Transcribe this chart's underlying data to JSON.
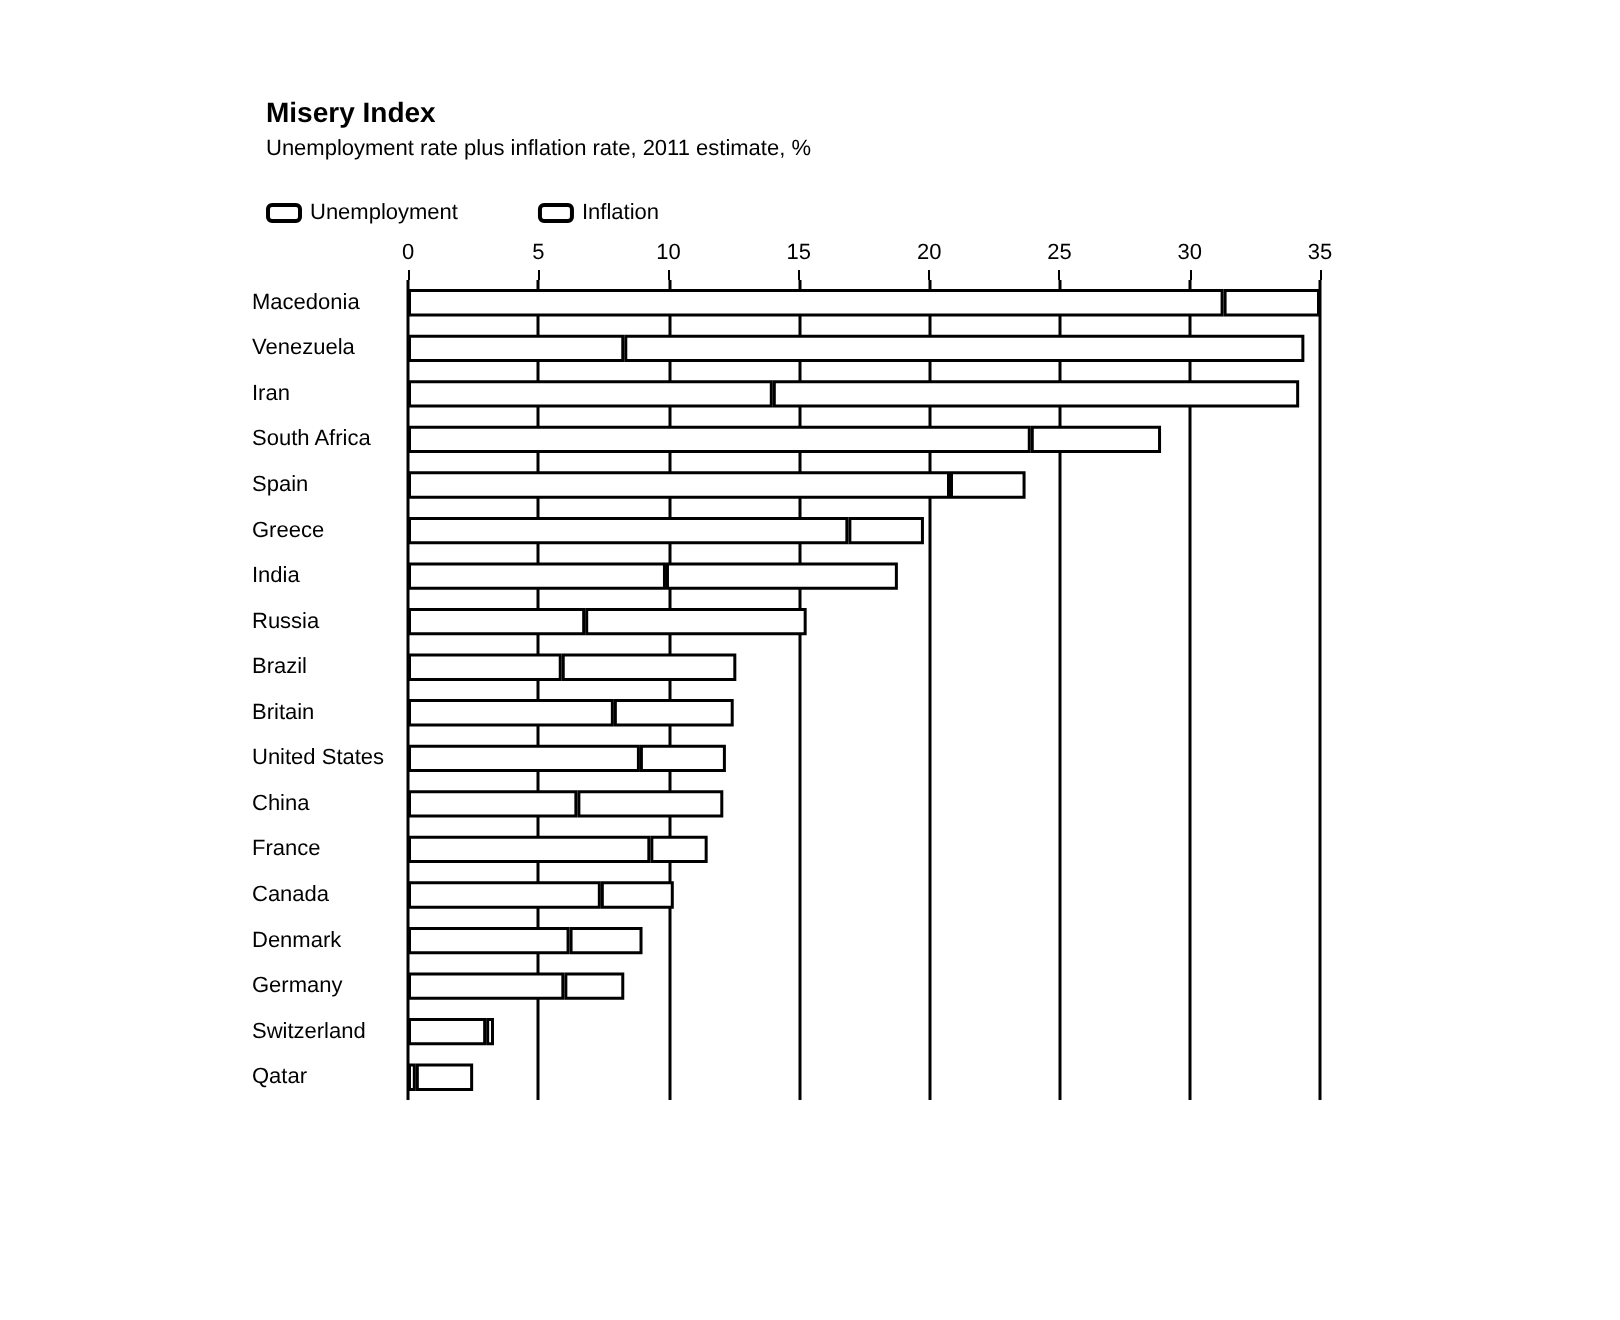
{
  "chart_data": {
    "type": "bar",
    "title": "Misery Index",
    "subtitle": "Unemployment rate plus inflation rate, 2011 estimate, %",
    "orientation": "horizontal",
    "stacked": true,
    "legend": "top left",
    "grid": "x",
    "categories": [
      "Macedonia",
      "Venezuela",
      "Iran",
      "South Africa",
      "Spain",
      "Greece",
      "India",
      "Russia",
      "Brazil",
      "Britain",
      "United States",
      "China",
      "France",
      "Canada",
      "Denmark",
      "Germany",
      "Switzerland",
      "Qatar"
    ],
    "series": [
      {
        "name": "Unemployment",
        "color": "#ffffff",
        "values": [
          31.3,
          8.3,
          14.0,
          23.9,
          20.8,
          16.9,
          9.9,
          6.8,
          5.9,
          7.9,
          8.9,
          6.5,
          9.3,
          7.4,
          6.2,
          6.0,
          3.0,
          0.3
        ]
      },
      {
        "name": "Inflation",
        "color": "#ffffff",
        "values": [
          3.7,
          26.1,
          20.2,
          5.0,
          2.9,
          2.9,
          8.9,
          8.5,
          6.7,
          4.6,
          3.3,
          5.6,
          2.2,
          2.8,
          2.8,
          2.3,
          0.3,
          2.2
        ]
      }
    ],
    "xlim": [
      0,
      35
    ],
    "xticks": [
      0,
      5,
      10,
      15,
      20,
      25,
      30,
      35
    ]
  }
}
